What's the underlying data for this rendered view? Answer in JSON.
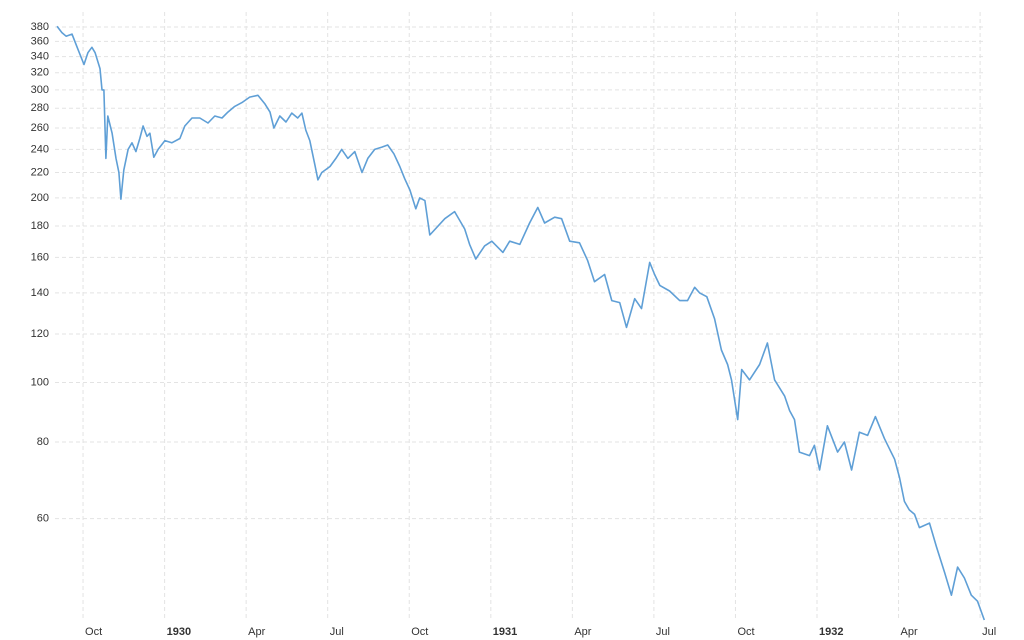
{
  "chart_data": {
    "type": "line",
    "log_scale": true,
    "grid": true,
    "x": [
      1929.67,
      1929.685,
      1929.698,
      1929.716,
      1929.734,
      1929.753,
      1929.765,
      1929.777,
      1929.787,
      1929.802,
      1929.808,
      1929.814,
      1929.82,
      1929.826,
      1929.839,
      1929.851,
      1929.86,
      1929.866,
      1929.875,
      1929.888,
      1929.9,
      1929.912,
      1929.924,
      1929.934,
      1929.946,
      1929.955,
      1929.967,
      1929.98,
      1930.001,
      1930.022,
      1930.047,
      1930.062,
      1930.084,
      1930.108,
      1930.133,
      1930.154,
      1930.176,
      1930.194,
      1930.215,
      1930.237,
      1930.261,
      1930.286,
      1930.307,
      1930.323,
      1930.335,
      1930.353,
      1930.372,
      1930.39,
      1930.408,
      1930.421,
      1930.433,
      1930.445,
      1930.461,
      1930.47,
      1930.482,
      1930.507,
      1930.525,
      1930.543,
      1930.562,
      1930.583,
      1930.605,
      1930.623,
      1930.644,
      1930.666,
      1930.684,
      1930.703,
      1930.721,
      1930.736,
      1930.752,
      1930.77,
      1930.782,
      1930.798,
      1930.813,
      1930.859,
      1930.889,
      1930.92,
      1930.935,
      1930.954,
      1930.981,
      1931.003,
      1931.037,
      1931.058,
      1931.089,
      1931.119,
      1931.144,
      1931.165,
      1931.196,
      1931.217,
      1931.242,
      1931.272,
      1931.297,
      1931.318,
      1931.349,
      1931.371,
      1931.395,
      1931.416,
      1931.441,
      1931.462,
      1931.487,
      1931.502,
      1931.518,
      1931.548,
      1931.579,
      1931.603,
      1931.625,
      1931.64,
      1931.662,
      1931.686,
      1931.707,
      1931.726,
      1931.738,
      1931.757,
      1931.769,
      1931.793,
      1931.824,
      1931.848,
      1931.87,
      1931.901,
      1931.916,
      1931.931,
      1931.946,
      1931.977,
      1931.992,
      1932.008,
      1932.032,
      1932.063,
      1932.084,
      1932.106,
      1932.13,
      1932.155,
      1932.179,
      1932.207,
      1932.222,
      1932.238,
      1932.253,
      1932.268,
      1932.283,
      1932.299,
      1932.314,
      1932.345,
      1932.366,
      1932.391,
      1932.412,
      1932.431,
      1932.452,
      1932.473,
      1932.492,
      1932.513
    ],
    "series": [
      {
        "color": "#5f9fd6",
        "values": [
          381,
          372,
          367,
          370,
          350,
          330,
          345,
          352,
          345,
          325,
          300,
          300,
          232,
          272,
          255,
          232,
          220,
          199,
          222,
          240,
          246,
          238,
          250,
          262,
          252,
          255,
          233,
          240,
          248,
          246,
          250,
          262,
          270,
          270,
          265,
          272,
          270,
          276,
          282,
          286,
          292,
          294,
          285,
          276,
          260,
          272,
          266,
          275,
          270,
          275,
          258,
          248,
          226,
          214,
          220,
          225,
          232,
          240,
          232,
          238,
          220,
          232,
          240,
          242,
          244,
          236,
          225,
          215,
          206,
          192,
          200,
          198,
          174,
          185,
          190,
          178,
          168,
          159,
          167,
          170,
          163,
          170,
          168,
          182,
          193,
          182,
          186,
          185,
          170,
          169,
          158,
          146,
          150,
          136,
          135,
          123,
          137,
          132,
          157,
          150,
          144,
          141,
          136,
          136,
          143,
          140,
          138,
          127,
          113,
          107,
          101,
          87,
          105,
          101,
          107,
          116,
          101,
          95,
          90,
          87,
          77,
          76,
          79,
          72,
          85,
          77,
          80,
          72,
          83,
          82,
          88,
          81,
          78,
          75,
          70,
          64,
          62,
          61,
          58,
          59,
          54,
          49,
          45,
          50,
          48,
          45,
          44,
          41
        ]
      }
    ],
    "xlim": [
      1929.664,
      1932.515
    ],
    "xticks": [
      {
        "value": 1929.75,
        "label": "Oct"
      },
      1930,
      {
        "value": 1930.25,
        "label": "Apr"
      },
      {
        "value": 1930.5,
        "label": "Jul"
      },
      {
        "value": 1930.75,
        "label": "Oct"
      },
      1931,
      {
        "value": 1931.25,
        "label": "Apr"
      },
      {
        "value": 1931.5,
        "label": "Jul"
      },
      {
        "value": 1931.75,
        "label": "Oct"
      },
      1932,
      {
        "value": 1932.25,
        "label": "Apr"
      },
      {
        "value": 1932.5,
        "label": "Jul"
      }
    ],
    "ylim": [
      41,
      393
    ],
    "yticks": [
      60,
      80,
      100,
      120,
      140,
      160,
      180,
      200,
      220,
      240,
      260,
      280,
      300,
      320,
      340,
      360,
      380
    ]
  }
}
